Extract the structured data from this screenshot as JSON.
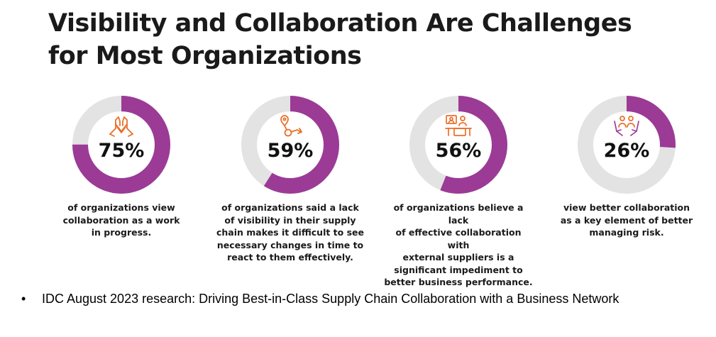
{
  "title": {
    "line1": "Visibility and Collaboration Are Challenges",
    "line2": "for Most Organizations"
  },
  "chart_data": {
    "type": "pie",
    "subtype": "donut",
    "colors": {
      "filled": "#9b3b96",
      "remaining": "#e3e3e3"
    },
    "stats": [
      {
        "value": 75,
        "label": "75%",
        "icon": "handshake-icon",
        "icon_color": "#e8702a",
        "desc_lines": [
          "of organizations view",
          "collaboration as a work",
          "in progress."
        ]
      },
      {
        "value": 59,
        "label": "59%",
        "icon": "map-pin-route-icon",
        "icon_color": "#e8702a",
        "desc_lines": [
          "of organizations said a lack",
          "of visibility in their supply",
          "chain makes it difficult to see",
          "necessary changes in time to",
          "react to them effectively."
        ]
      },
      {
        "value": 56,
        "label": "56%",
        "icon": "video-meeting-icon",
        "icon_color": "#e8702a",
        "desc_lines": [
          "of organizations believe a lack",
          "of effective collaboration with",
          "external suppliers is a",
          "significant impediment to",
          "better business performance."
        ]
      },
      {
        "value": 26,
        "label": "26%",
        "icon": "people-hands-icon",
        "icon_color": "#e8702a",
        "desc_lines": [
          "view better collaboration",
          "as a key element of better",
          "managing risk."
        ]
      }
    ]
  },
  "footnote": {
    "bullet": "•",
    "text": "IDC August 2023 research: Driving Best-in-Class Supply Chain Collaboration with a Business Network"
  }
}
